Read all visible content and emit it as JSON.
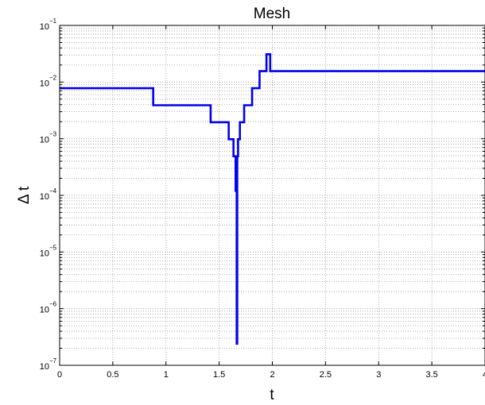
{
  "chart_data": {
    "type": "line",
    "title": "Mesh",
    "xlabel": "t",
    "ylabel": "Δ t",
    "xlim": [
      0,
      4
    ],
    "ylim": [
      1e-07,
      0.1
    ],
    "y_scale": "log",
    "grid": true,
    "xticks": [
      0,
      0.5,
      1,
      1.5,
      2,
      2.5,
      3,
      3.5,
      4
    ],
    "xtick_labels": [
      "0",
      "0.5",
      "1",
      "1.5",
      "2",
      "2.5",
      "3",
      "3.5",
      "4"
    ],
    "yticks": [
      1e-07,
      1e-06,
      1e-05,
      0.0001,
      0.001,
      0.01,
      0.1
    ],
    "ytick_labels": [
      {
        "base": "10",
        "exp": "−7"
      },
      {
        "base": "10",
        "exp": "−6"
      },
      {
        "base": "10",
        "exp": "−5"
      },
      {
        "base": "10",
        "exp": "−4"
      },
      {
        "base": "10",
        "exp": "−3"
      },
      {
        "base": "10",
        "exp": "−2"
      },
      {
        "base": "10",
        "exp": "−1"
      }
    ],
    "series": [
      {
        "color": "#0000ee",
        "x": [
          0,
          0.88,
          0.88,
          1.42,
          1.42,
          1.59,
          1.59,
          1.635,
          1.635,
          1.655,
          1.655,
          1.665,
          1.665,
          1.67,
          1.67,
          1.678,
          1.678,
          1.695,
          1.695,
          1.735,
          1.735,
          1.81,
          1.81,
          1.88,
          1.88,
          1.945,
          1.945,
          1.98,
          1.98,
          2.04,
          2.04,
          4.0
        ],
        "y": [
          0.0078,
          0.0078,
          0.0039,
          0.0039,
          0.00195,
          0.00195,
          0.00098,
          0.00098,
          0.00049,
          0.00049,
          0.00012,
          0.00012,
          2.4e-07,
          2.4e-07,
          0.00049,
          0.00049,
          0.00098,
          0.00098,
          0.00195,
          0.00195,
          0.0039,
          0.0039,
          0.0078,
          0.0078,
          0.0156,
          0.0156,
          0.031,
          0.031,
          0.0156,
          0.0156,
          0.0156,
          0.0156
        ]
      }
    ]
  }
}
